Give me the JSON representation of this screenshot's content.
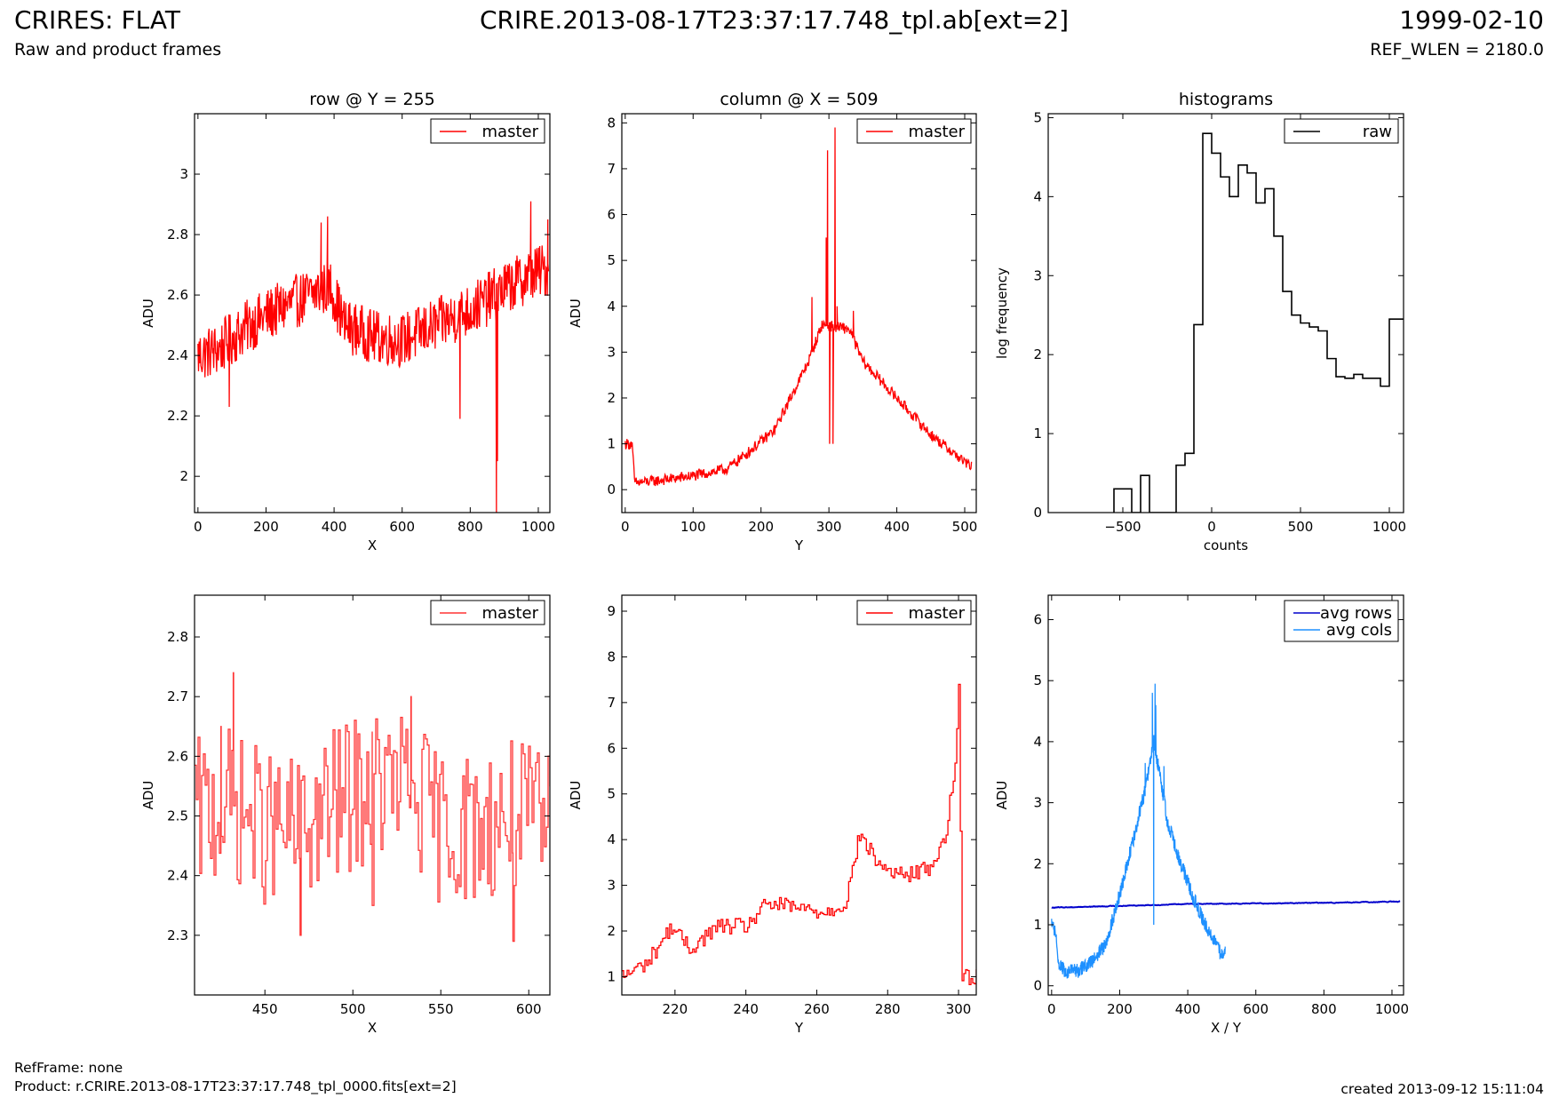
{
  "header": {
    "title": "CRIRES: FLAT",
    "subtitle": "Raw and product frames",
    "file": "CRIRE.2013-08-17T23:37:17.748_tpl.ab[ext=2]",
    "date": "1999-02-10",
    "ref_wlen": "REF_WLEN = 2180.0"
  },
  "footer": {
    "refframe": "RefFrame: none",
    "product": "Product: r.CRIRE.2013-08-17T23:37:17.748_tpl_0000.fits[ext=2]",
    "created": "created 2013-09-12 15:11:04"
  },
  "colors": {
    "master": "#ff0000",
    "raw": "#000000",
    "avg_rows": "#0000cc",
    "avg_cols": "#1e90ff"
  },
  "chart_data": [
    {
      "type": "line",
      "title": "row @ Y = 255",
      "xlabel": "X",
      "ylabel": "ADU",
      "xlim": [
        -10,
        1034
      ],
      "ylim": [
        1.88,
        3.2
      ],
      "xticks": [
        0,
        200,
        400,
        600,
        800,
        1000
      ],
      "yticks": [
        2.0,
        2.2,
        2.4,
        2.6,
        2.8,
        3.0
      ],
      "legend": "top-right",
      "series": [
        {
          "name": "master",
          "color": "#ff0000",
          "style": "noisy",
          "x": [
            0,
            60,
            150,
            250,
            330,
            390,
            430,
            520,
            600,
            700,
            800,
            900,
            1000,
            1030
          ],
          "y": [
            2.4,
            2.42,
            2.5,
            2.56,
            2.6,
            2.63,
            2.5,
            2.46,
            2.45,
            2.5,
            2.55,
            2.62,
            2.68,
            2.68
          ],
          "amp": 0.09,
          "spikes": [
            [
              381,
              2.86
            ],
            [
              362,
              2.84
            ],
            [
              770,
              2.19
            ],
            [
              877,
              1.88
            ],
            [
              880,
              2.05
            ],
            [
              978,
              2.91
            ],
            [
              1028,
              2.85
            ],
            [
              92,
              2.23
            ]
          ]
        }
      ]
    },
    {
      "type": "line",
      "title": "column @ X = 509",
      "xlabel": "Y",
      "ylabel": "ADU",
      "xlim": [
        -5,
        517
      ],
      "ylim": [
        -0.5,
        8.2
      ],
      "xticks": [
        0,
        100,
        200,
        300,
        400,
        500
      ],
      "yticks": [
        0,
        1,
        2,
        3,
        4,
        5,
        6,
        7,
        8
      ],
      "legend": "top-right",
      "series": [
        {
          "name": "master",
          "color": "#ff0000",
          "style": "noisy",
          "x": [
            0,
            10,
            14,
            50,
            100,
            150,
            180,
            220,
            250,
            270,
            285,
            290,
            330,
            350,
            400,
            450,
            500,
            510
          ],
          "y": [
            1.0,
            1.0,
            0.15,
            0.2,
            0.3,
            0.45,
            0.8,
            1.3,
            2.2,
            2.8,
            3.4,
            3.6,
            3.5,
            2.8,
            2.0,
            1.2,
            0.6,
            0.5
          ],
          "amp": 0.12,
          "spikes": [
            [
              296,
              5.5
            ],
            [
              298,
              7.4
            ],
            [
              301,
              1.0
            ],
            [
              306,
              1.0
            ],
            [
              309,
              7.9
            ],
            [
              312,
              4.0
            ],
            [
              275,
              4.2
            ],
            [
              336,
              3.9
            ]
          ]
        }
      ]
    },
    {
      "type": "histogram",
      "title": "histograms",
      "xlabel": "counts",
      "ylabel": "log frequency",
      "xlim": [
        -920,
        1080
      ],
      "ylim": [
        0,
        5.05
      ],
      "xticks": [
        -500,
        0,
        500,
        1000
      ],
      "xtick_labels": [
        "−500",
        "0",
        "500",
        "1000"
      ],
      "yticks": [
        0,
        1,
        2,
        3,
        4,
        5
      ],
      "legend": "top-right",
      "series": [
        {
          "name": "raw",
          "color": "#000000",
          "edges": [
            -550,
            -450,
            -400,
            -350,
            -200,
            -150,
            -100,
            -50,
            0,
            50,
            100,
            150,
            200,
            250,
            300,
            350,
            400,
            450,
            500,
            550,
            600,
            650,
            700,
            750,
            800,
            850,
            900,
            950,
            1000,
            1050,
            1100
          ],
          "values": [
            0.3,
            0,
            0.47,
            0,
            0.6,
            0.75,
            2.38,
            4.8,
            4.55,
            4.25,
            4.0,
            4.4,
            4.3,
            3.92,
            4.1,
            3.5,
            2.8,
            2.5,
            2.4,
            2.35,
            2.3,
            1.95,
            1.72,
            1.7,
            1.75,
            1.7,
            1.7,
            1.6,
            2.45,
            2.45
          ]
        }
      ]
    },
    {
      "type": "line",
      "title": "",
      "xlabel": "X",
      "ylabel": "ADU",
      "xlim": [
        410,
        612
      ],
      "ylim": [
        2.2,
        2.87
      ],
      "xticks": [
        450,
        500,
        550,
        600
      ],
      "yticks": [
        2.3,
        2.4,
        2.5,
        2.6,
        2.7,
        2.8
      ],
      "legend": "top-right",
      "series": [
        {
          "name": "master",
          "color": "#ff3333",
          "style": "step",
          "x": [
            410,
            430,
            450,
            470,
            490,
            510,
            530,
            550,
            570,
            590,
            612
          ],
          "y": [
            2.5,
            2.52,
            2.48,
            2.47,
            2.52,
            2.55,
            2.55,
            2.48,
            2.48,
            2.5,
            2.48
          ],
          "amp": 0.13,
          "spikes": [
            [
              432,
              2.74
            ],
            [
              533,
              2.7
            ],
            [
              470,
              2.3
            ],
            [
              591,
              2.29
            ],
            [
              425,
              2.65
            ],
            [
              511,
              2.35
            ]
          ]
        }
      ]
    },
    {
      "type": "line",
      "title": "",
      "xlabel": "Y",
      "ylabel": "ADU",
      "xlim": [
        205,
        305
      ],
      "ylim": [
        0.6,
        9.35
      ],
      "xticks": [
        220,
        240,
        260,
        280,
        300
      ],
      "yticks": [
        1,
        2,
        3,
        4,
        5,
        6,
        7,
        8,
        9
      ],
      "legend": "top-right",
      "series": [
        {
          "name": "master",
          "color": "#ff0000",
          "style": "step",
          "x": [
            205,
            212,
            219,
            224,
            232,
            240,
            246,
            255,
            262,
            268,
            272,
            278,
            285,
            292,
            296,
            299,
            300,
            301,
            305
          ],
          "y": [
            1.0,
            1.3,
            2.1,
            1.6,
            2.1,
            2.1,
            2.6,
            2.5,
            2.4,
            2.6,
            4.1,
            3.4,
            3.2,
            3.4,
            4.0,
            5.6,
            7.4,
            1.0,
            1.0
          ],
          "amp": 0.18,
          "spikes": []
        }
      ]
    },
    {
      "type": "line",
      "title": "",
      "xlabel": "X / Y",
      "ylabel": "ADU",
      "xlim": [
        -10,
        1034
      ],
      "ylim": [
        -0.15,
        6.4
      ],
      "xticks": [
        0,
        200,
        400,
        600,
        800,
        1000
      ],
      "yticks": [
        0,
        1,
        2,
        3,
        4,
        5,
        6
      ],
      "legend": "top-right",
      "series": [
        {
          "name": "avg rows",
          "color": "#0000cc",
          "style": "smooth",
          "x": [
            0,
            200,
            400,
            600,
            800,
            1024
          ],
          "y": [
            1.28,
            1.31,
            1.34,
            1.35,
            1.36,
            1.38
          ],
          "amp": 0.015,
          "spikes": []
        },
        {
          "name": "avg cols",
          "color": "#1e90ff",
          "style": "noisy",
          "x": [
            0,
            10,
            20,
            40,
            80,
            120,
            160,
            200,
            240,
            270,
            285,
            300,
            320,
            340,
            380,
            420,
            460,
            500,
            510
          ],
          "y": [
            1.0,
            0.9,
            0.4,
            0.22,
            0.25,
            0.4,
            0.7,
            1.5,
            2.4,
            3.1,
            3.5,
            4.0,
            3.4,
            2.7,
            2.0,
            1.4,
            0.9,
            0.5,
            0.6
          ],
          "amp": 0.12,
          "spikes": [
            [
              296,
              4.8
            ],
            [
              300,
              1.0
            ],
            [
              304,
              4.95
            ],
            [
              306,
              4.6
            ],
            [
              275,
              3.65
            ],
            [
              330,
              3.6
            ]
          ]
        }
      ]
    }
  ]
}
